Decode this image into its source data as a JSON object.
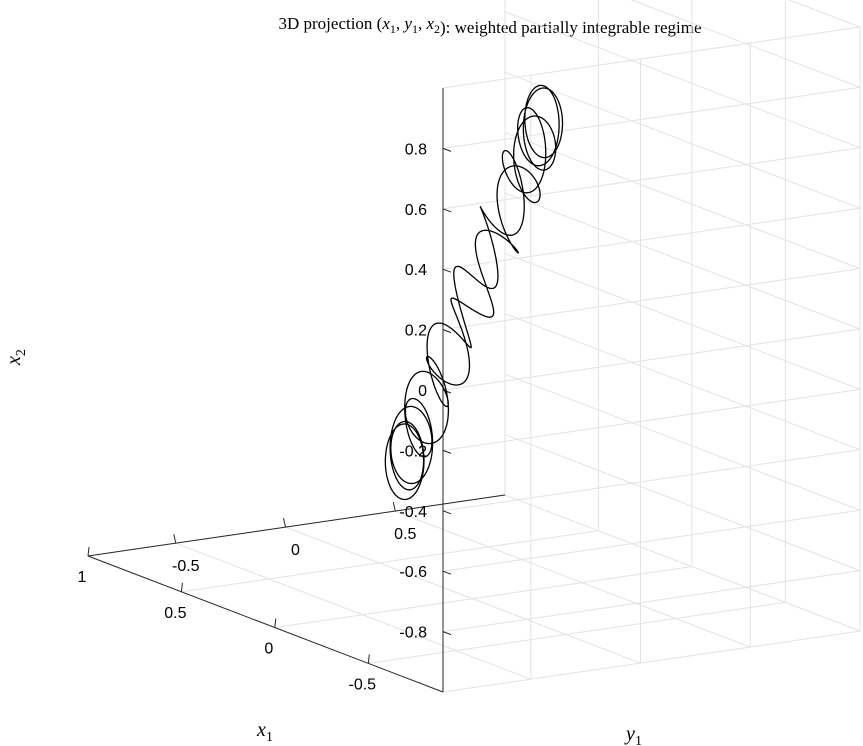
{
  "chart_data": {
    "type": "line",
    "projection": "3d",
    "title": {
      "text": "3D projection (x1, y1, x2): weighted partially integrable regime",
      "prefix": "3D projection (",
      "vars": [
        {
          "base": "x",
          "sub": "1"
        },
        {
          "base": "y",
          "sub": "1"
        },
        {
          "base": "x",
          "sub": "2"
        }
      ],
      "suffix": "): weighted partially integrable regime"
    },
    "xlabel": {
      "base": "x",
      "sub": "1"
    },
    "ylabel": {
      "base": "y",
      "sub": "1"
    },
    "zlabel": {
      "base": "x",
      "sub": "2"
    },
    "xlim": [
      -0.9,
      1.0
    ],
    "ylim": [
      -0.9,
      1.0
    ],
    "zlim": [
      -1.0,
      1.0
    ],
    "xticks": [
      {
        "value": -0.5,
        "label": "-0.5"
      },
      {
        "value": 0,
        "label": "0"
      },
      {
        "value": 0.5,
        "label": "0.5"
      },
      {
        "value": 1,
        "label": "1"
      }
    ],
    "yticks": [
      {
        "value": -0.5,
        "label": "-0.5"
      },
      {
        "value": 0,
        "label": "0"
      },
      {
        "value": 0.5,
        "label": "0.5"
      }
    ],
    "zticks": [
      {
        "value": 0.8,
        "label": "0.8"
      },
      {
        "value": 0.6,
        "label": "0.6"
      },
      {
        "value": 0.4,
        "label": "0.4"
      },
      {
        "value": 0.2,
        "label": "0.2"
      },
      {
        "value": 0,
        "label": "0"
      },
      {
        "value": -0.2,
        "label": "-0.2"
      },
      {
        "value": -0.4,
        "label": "-0.4"
      },
      {
        "value": -0.6,
        "label": "-0.6"
      },
      {
        "value": -0.8,
        "label": "-0.8"
      }
    ],
    "grid": true,
    "series": [
      {
        "curve": "quasi-periodic trajectory on a torus",
        "color": "#000000",
        "torus": {
          "major_radius": 0.72,
          "minor_radius": 0.12,
          "windings": 17,
          "tilt_deg": 52
        }
      }
    ]
  }
}
